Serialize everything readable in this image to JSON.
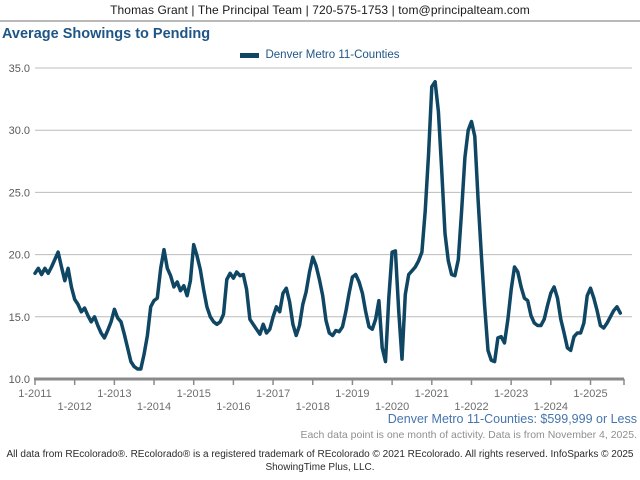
{
  "header": {
    "contact_line": "Thomas Grant | The Principal Team | 720-575-1753 | tom@principalteam.com"
  },
  "title": "Average Showings to Pending",
  "legend": {
    "label": "Denver Metro 11-Counties",
    "swatch_color": "#0f4663"
  },
  "chart_data": {
    "type": "line",
    "title": "Average Showings to Pending",
    "xlabel": "",
    "ylabel": "",
    "ylim": [
      10.0,
      35.0
    ],
    "y_ticks": [
      10.0,
      15.0,
      20.0,
      25.0,
      30.0,
      35.0
    ],
    "y_tick_labels": [
      "10.0",
      "15.0",
      "20.0",
      "25.0",
      "30.0",
      "35.0"
    ],
    "x_tick_labels": [
      "1-2011",
      "1-2012",
      "1-2013",
      "1-2014",
      "1-2015",
      "1-2016",
      "1-2017",
      "1-2018",
      "1-2019",
      "1-2020",
      "1-2021",
      "1-2022",
      "1-2023",
      "1-2024",
      "1-2025"
    ],
    "grid": true,
    "legend_position": "top-center",
    "series": [
      {
        "name": "Denver Metro 11-Counties",
        "color": "#0f4663",
        "start_month": "2011-01",
        "end_month": "2025-10",
        "values": [
          18.5,
          18.9,
          18.4,
          18.9,
          18.5,
          19.0,
          19.6,
          20.2,
          19.0,
          17.9,
          18.9,
          17.4,
          16.4,
          16.0,
          15.4,
          15.7,
          15.1,
          14.6,
          15.0,
          14.3,
          13.7,
          13.3,
          13.9,
          14.6,
          15.6,
          14.9,
          14.6,
          13.6,
          12.5,
          11.4,
          11.0,
          10.8,
          10.8,
          12.0,
          13.5,
          15.8,
          16.3,
          16.5,
          18.9,
          20.4,
          18.9,
          18.3,
          17.4,
          17.8,
          17.1,
          17.5,
          16.7,
          17.9,
          20.8,
          19.9,
          18.8,
          17.2,
          15.8,
          15.0,
          14.6,
          14.4,
          14.6,
          15.2,
          18.0,
          18.5,
          18.1,
          18.6,
          18.3,
          18.4,
          17.2,
          14.8,
          14.4,
          14.0,
          13.6,
          14.4,
          13.7,
          14.0,
          15.0,
          15.8,
          15.4,
          16.9,
          17.3,
          16.2,
          14.4,
          13.5,
          14.3,
          16.0,
          17.0,
          18.6,
          19.8,
          19.1,
          18.0,
          16.7,
          14.7,
          13.7,
          13.5,
          13.9,
          13.8,
          14.2,
          15.4,
          16.9,
          18.2,
          18.4,
          17.8,
          16.9,
          15.4,
          14.2,
          14.0,
          14.8,
          16.3,
          12.5,
          11.4,
          16.5,
          20.2,
          20.3,
          15.5,
          11.6,
          16.8,
          18.4,
          18.7,
          19.0,
          19.5,
          20.2,
          23.5,
          28.0,
          33.5,
          33.9,
          31.5,
          26.8,
          21.7,
          19.5,
          18.4,
          18.3,
          19.6,
          23.5,
          27.8,
          30.0,
          30.7,
          29.5,
          24.4,
          19.9,
          15.8,
          12.3,
          11.5,
          11.4,
          13.3,
          13.4,
          12.9,
          14.8,
          17.2,
          19.0,
          18.6,
          17.4,
          16.5,
          16.3,
          15.1,
          14.5,
          14.3,
          14.3,
          14.8,
          15.9,
          16.9,
          17.4,
          16.5,
          14.8,
          13.7,
          12.5,
          12.3,
          13.4,
          13.7,
          13.7,
          14.5,
          16.7,
          17.3,
          16.5,
          15.5,
          14.3,
          14.1,
          14.5,
          15.0,
          15.5,
          15.8,
          15.3
        ]
      }
    ]
  },
  "footnotes": {
    "series_filter": "Denver Metro 11-Counties: $599,999 or Less",
    "data_note": "Each data point is one month of activity. Data is from November 4, 2025.",
    "copyright_line1": "All data from REcolorado®. REcolorado® is a registered trademark of REcolorado © 2021 REcolorado. All rights reserved. InfoSparks © 2025",
    "copyright_line2": "ShowingTime Plus, LLC."
  },
  "colors": {
    "line": "#0f4663",
    "title_text": "#1f5586",
    "filter_text": "#4675ad",
    "gridline": "#bcbcbc",
    "axis": "#8a8a8a",
    "tick_label": "#6e6e6e",
    "y_label": "#5a5a5a"
  }
}
